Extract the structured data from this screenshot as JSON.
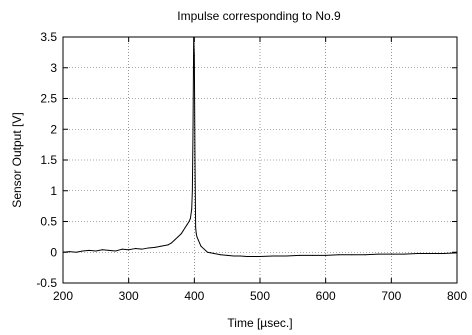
{
  "chart_data": {
    "type": "line",
    "title": "Impulse corresponding to No.9",
    "xlabel": "Time [µsec.]",
    "ylabel": "Sensor Output [V]",
    "xlim": [
      200,
      800
    ],
    "ylim": [
      -0.5,
      3.5
    ],
    "xticks": [
      200,
      300,
      400,
      500,
      600,
      700,
      800
    ],
    "yticks": [
      -0.5,
      0,
      0.5,
      1,
      1.5,
      2,
      2.5,
      3,
      3.5
    ],
    "xtick_labels": [
      "200",
      "300",
      "400",
      "500",
      "600",
      "700",
      "800"
    ],
    "ytick_labels": [
      "-0.5",
      "0",
      "0.5",
      "1",
      "1.5",
      "2",
      "2.5",
      "3",
      "3.5"
    ],
    "grid": true,
    "series": [
      {
        "color": "#000000",
        "x": [
          200,
          210,
          220,
          230,
          240,
          250,
          260,
          270,
          280,
          290,
          300,
          310,
          320,
          330,
          340,
          350,
          360,
          365,
          370,
          375,
          380,
          383,
          386,
          389,
          392,
          394,
          396,
          397,
          398,
          399,
          400,
          401,
          402,
          403,
          404,
          406,
          408,
          410,
          415,
          420,
          430,
          440,
          450,
          460,
          470,
          480,
          490,
          500,
          520,
          540,
          560,
          580,
          600,
          620,
          640,
          660,
          680,
          700,
          720,
          740,
          760,
          780,
          800
        ],
        "y": [
          0.0,
          0.01,
          0.0,
          0.02,
          0.03,
          0.02,
          0.04,
          0.03,
          0.02,
          0.05,
          0.04,
          0.06,
          0.05,
          0.07,
          0.08,
          0.1,
          0.12,
          0.15,
          0.2,
          0.25,
          0.3,
          0.35,
          0.4,
          0.45,
          0.5,
          0.55,
          0.7,
          1.0,
          2.0,
          3.5,
          3.2,
          1.5,
          0.4,
          0.3,
          0.25,
          0.2,
          0.15,
          0.1,
          0.05,
          0.0,
          -0.02,
          -0.04,
          -0.05,
          -0.06,
          -0.06,
          -0.07,
          -0.07,
          -0.07,
          -0.06,
          -0.06,
          -0.05,
          -0.05,
          -0.05,
          -0.04,
          -0.04,
          -0.04,
          -0.03,
          -0.03,
          -0.03,
          -0.02,
          -0.02,
          -0.02,
          -0.01
        ]
      }
    ]
  }
}
